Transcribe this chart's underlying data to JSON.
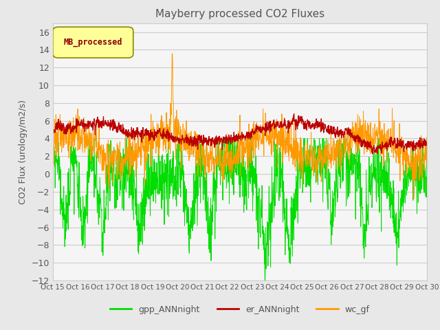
{
  "title": "Mayberry processed CO2 Fluxes",
  "ylabel": "CO2 Flux (urology/m2/s)",
  "xlabel": "",
  "ylim": [
    -12,
    17
  ],
  "yticks": [
    -12,
    -10,
    -8,
    -6,
    -4,
    -2,
    0,
    2,
    4,
    6,
    8,
    10,
    12,
    14,
    16
  ],
  "xtick_labels": [
    "Oct 15",
    "Oct 16",
    "Oct 17",
    "Oct 18",
    "Oct 19",
    "Oct 20",
    "Oct 21",
    "Oct 22",
    "Oct 23",
    "Oct 24",
    "Oct 25",
    "Oct 26",
    "Oct 27",
    "Oct 28",
    "Oct 29",
    "Oct 30"
  ],
  "n_points": 1440,
  "line_colors": {
    "gpp_ANNnight": "#00dd00",
    "er_ANNnight": "#bb0000",
    "wc_gf": "#ff9900"
  },
  "legend_label": "MB_processed",
  "legend_label_color": "#880000",
  "legend_box_facecolor": "#ffff99",
  "legend_box_edgecolor": "#888800",
  "background_color": "#e8e8e8",
  "plot_bg_color": "#f5f5f5",
  "title_color": "#555555",
  "axis_color": "#555555",
  "grid_color": "#cccccc"
}
